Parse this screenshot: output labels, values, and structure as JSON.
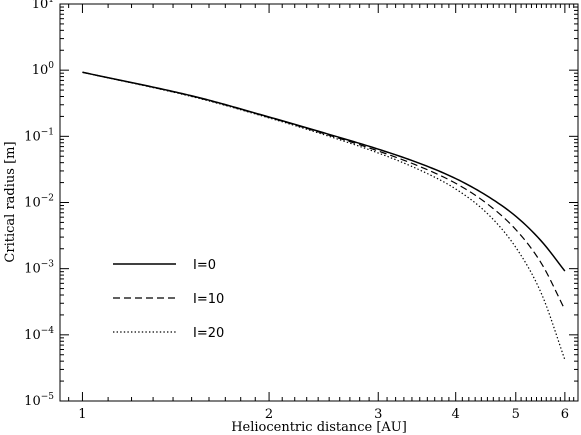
{
  "chart_data": {
    "type": "line",
    "xlabel": "Heliocentric distance [AU]",
    "ylabel": "Critical radius [m]",
    "x_scale": "log",
    "y_scale": "log",
    "xlim": [
      0.92,
      6.3
    ],
    "ylim": [
      1e-05,
      10
    ],
    "x_ticks": [
      {
        "value": 1,
        "label": "1"
      },
      {
        "value": 2,
        "label": "2"
      },
      {
        "value": 3,
        "label": "3"
      },
      {
        "value": 4,
        "label": "4"
      },
      {
        "value": 5,
        "label": "5"
      },
      {
        "value": 6,
        "label": "6"
      }
    ],
    "y_ticks": [
      {
        "value": 1e-05,
        "base": "10",
        "exp": "−5"
      },
      {
        "value": 0.0001,
        "base": "10",
        "exp": "−4"
      },
      {
        "value": 0.001,
        "base": "10",
        "exp": "−3"
      },
      {
        "value": 0.01,
        "base": "10",
        "exp": "−2"
      },
      {
        "value": 0.1,
        "base": "10",
        "exp": "−1"
      },
      {
        "value": 1,
        "base": "10",
        "exp": "0"
      },
      {
        "value": 10,
        "base": "10",
        "exp": "1"
      }
    ],
    "legend_position": "bottom-left",
    "series": [
      {
        "name": "I=0",
        "dash": "solid",
        "points": [
          [
            1,
            0.93
          ],
          [
            1.5,
            0.41
          ],
          [
            2,
            0.196
          ],
          [
            2.5,
            0.107
          ],
          [
            3,
            0.064
          ],
          [
            3.5,
            0.039
          ],
          [
            4,
            0.023
          ],
          [
            4.5,
            0.0125
          ],
          [
            5,
            0.0062
          ],
          [
            5.5,
            0.0026
          ],
          [
            6,
            0.00092
          ]
        ]
      },
      {
        "name": "I=10",
        "dash": "dashed",
        "points": [
          [
            1,
            0.93
          ],
          [
            1.5,
            0.405
          ],
          [
            2,
            0.193
          ],
          [
            2.5,
            0.104
          ],
          [
            3,
            0.06
          ],
          [
            3.5,
            0.035
          ],
          [
            4,
            0.0195
          ],
          [
            4.5,
            0.0095
          ],
          [
            5,
            0.0039
          ],
          [
            5.5,
            0.0012
          ],
          [
            6,
            0.00024
          ]
        ]
      },
      {
        "name": "I=20",
        "dash": "dotted",
        "points": [
          [
            1,
            0.93
          ],
          [
            1.5,
            0.4
          ],
          [
            2,
            0.19
          ],
          [
            2.5,
            0.1
          ],
          [
            3,
            0.056
          ],
          [
            3.5,
            0.031
          ],
          [
            4,
            0.016
          ],
          [
            4.5,
            0.0068
          ],
          [
            5,
            0.0021
          ],
          [
            5.5,
            0.00042
          ],
          [
            6,
            4.2e-05
          ]
        ]
      }
    ]
  }
}
